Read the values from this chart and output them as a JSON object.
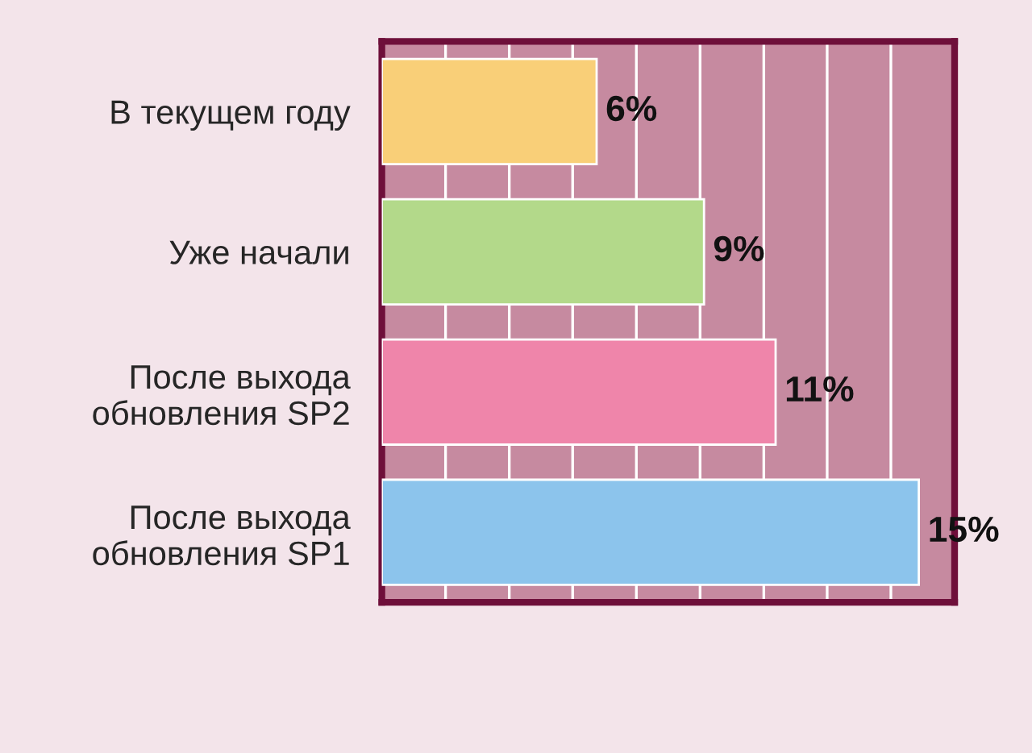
{
  "chart_data": {
    "type": "bar",
    "orientation": "horizontal",
    "categories": [
      "В текущем году",
      "Уже начали",
      "После выхода\nобновления SP2",
      "После выхода\nобновления SP1"
    ],
    "values": [
      6,
      9,
      11,
      15
    ],
    "colors": [
      "#f9cf78",
      "#b3d98a",
      "#ef85aa",
      "#8cc4ec"
    ],
    "value_labels": [
      "6%",
      "9%",
      "11%",
      "15%"
    ],
    "xlim": [
      0,
      16
    ],
    "xticks": [
      {
        "value": 1.78,
        "label": null
      },
      {
        "value": 3.56,
        "label": null
      },
      {
        "value": 5.33,
        "label": null
      },
      {
        "value": 7.11,
        "label": null
      },
      {
        "value": 8.89,
        "label": null
      },
      {
        "value": 10.67,
        "label": null
      },
      {
        "value": 12.44,
        "label": null
      },
      {
        "value": 14.22,
        "label": null
      }
    ],
    "tick_labels": "y",
    "grid": "x",
    "legend": false
  }
}
